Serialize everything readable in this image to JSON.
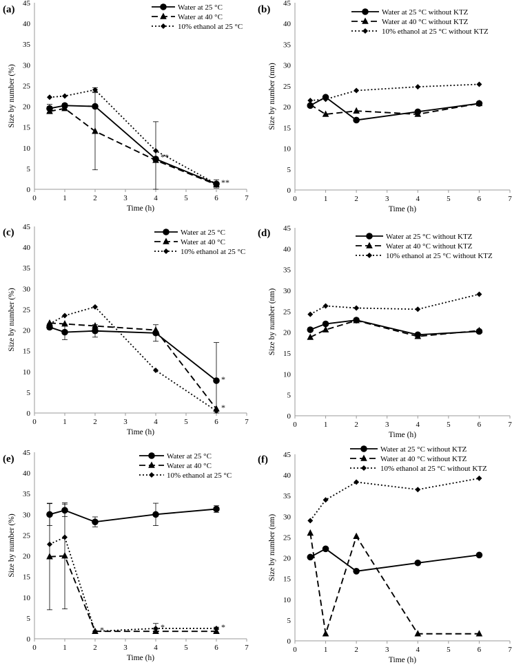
{
  "chart_data": [
    {
      "panel": "(a)",
      "type": "line",
      "xlabel": "Time (h)",
      "ylabel": "Size by number (%)",
      "xlim": [
        0,
        7
      ],
      "ylim": [
        0,
        45
      ],
      "xticks": [
        "0",
        "1",
        "2",
        "3",
        "4",
        "5",
        "6",
        "7"
      ],
      "yticks": [
        "0",
        "5",
        "10",
        "15",
        "20",
        "25",
        "30",
        "35",
        "40",
        "45"
      ],
      "legend_position": "top-right",
      "x": [
        0.5,
        1,
        2,
        4,
        6
      ],
      "series": [
        {
          "name": "Water at 25 °C",
          "style": "solid",
          "marker": "circle",
          "values": [
            19.5,
            20.2,
            20.0,
            7.3,
            1.3
          ],
          "errors": [
            1.0,
            0.5,
            0,
            9.0,
            1.0
          ]
        },
        {
          "name": "Water at 40 °C",
          "style": "dashed",
          "marker": "triangle",
          "values": [
            18.8,
            19.5,
            14.0,
            7.0,
            1.1
          ],
          "errors": [
            0,
            0,
            9.3,
            0,
            0
          ]
        },
        {
          "name": "10% ethanol at 25 °C",
          "style": "dotted",
          "marker": "diamond",
          "values": [
            22.2,
            22.5,
            24.0,
            9.3,
            1.3
          ],
          "errors": [
            0,
            0,
            0.5,
            0,
            0
          ]
        }
      ],
      "annotations": [
        {
          "x": 4,
          "y": 7.5,
          "text": "**"
        },
        {
          "x": 6,
          "y": 1.3,
          "text": "**"
        }
      ]
    },
    {
      "panel": "(b)",
      "type": "line",
      "xlabel": "Time (h)",
      "ylabel": "Size by number (nm)",
      "xlim": [
        0,
        7
      ],
      "ylim": [
        0,
        45
      ],
      "xticks": [
        "0",
        "1",
        "2",
        "3",
        "4",
        "5",
        "6",
        "7"
      ],
      "yticks": [
        "0",
        "5",
        "10",
        "15",
        "20",
        "25",
        "30",
        "35",
        "40",
        "45"
      ],
      "legend_position": "top-right",
      "x": [
        0.5,
        1,
        2,
        4,
        6
      ],
      "series": [
        {
          "name": "Water at 25 °C without KTZ",
          "style": "solid",
          "marker": "circle",
          "values": [
            20.3,
            22.3,
            16.8,
            18.8,
            20.8
          ]
        },
        {
          "name": "Water at 40 °C without KTZ",
          "style": "dashed",
          "marker": "triangle",
          "values": [
            20.5,
            18.2,
            19.0,
            18.2,
            20.8
          ]
        },
        {
          "name": "10% ethanol at 25 °C without KTZ",
          "style": "dotted",
          "marker": "diamond",
          "values": [
            21.5,
            21.8,
            23.9,
            24.8,
            25.4
          ]
        }
      ],
      "annotations": []
    },
    {
      "panel": "(c)",
      "type": "line",
      "xlabel": "Time (h)",
      "ylabel": "Size by number (%)",
      "xlim": [
        0,
        7
      ],
      "ylim": [
        0,
        45
      ],
      "xticks": [
        "0",
        "1",
        "2",
        "3",
        "4",
        "5",
        "6",
        "7"
      ],
      "yticks": [
        "0",
        "5",
        "10",
        "15",
        "20",
        "25",
        "30",
        "35",
        "40",
        "45"
      ],
      "legend_position": "top-right",
      "x": [
        0.5,
        1,
        2,
        4,
        6
      ],
      "series": [
        {
          "name": "Water at 25 °C",
          "style": "solid",
          "marker": "circle",
          "values": [
            20.7,
            19.5,
            19.8,
            19.3,
            7.8
          ],
          "errors": [
            0.5,
            1.8,
            1.5,
            2.0,
            9.2
          ]
        },
        {
          "name": "Water at 40 °C",
          "style": "dashed",
          "marker": "triangle",
          "values": [
            21.7,
            21.5,
            21.0,
            20.0,
            1.0
          ],
          "errors": [
            0,
            0,
            0,
            0,
            0
          ]
        },
        {
          "name": "10% ethanol at 25 °C",
          "style": "dotted",
          "marker": "diamond",
          "values": [
            21.5,
            23.5,
            25.6,
            10.3,
            0.5
          ],
          "errors": [
            0,
            0,
            0,
            0,
            0
          ]
        }
      ],
      "annotations": [
        {
          "x": 6,
          "y": 7.8,
          "text": "*"
        },
        {
          "x": 6,
          "y": 1.0,
          "text": "*"
        }
      ]
    },
    {
      "panel": "(d)",
      "type": "line",
      "xlabel": "Time (h)",
      "ylabel": "Size by number (nm)",
      "xlim": [
        0,
        7
      ],
      "ylim": [
        0,
        45
      ],
      "xticks": [
        "0",
        "1",
        "2",
        "3",
        "4",
        "5",
        "6",
        "7"
      ],
      "yticks": [
        "0",
        "5",
        "10",
        "15",
        "20",
        "25",
        "30",
        "35",
        "40",
        "45"
      ],
      "legend_position": "top-right",
      "x": [
        0.5,
        1,
        2,
        4,
        6
      ],
      "series": [
        {
          "name": "Water at 25 °C without KTZ",
          "style": "solid",
          "marker": "circle",
          "values": [
            20.6,
            22.0,
            22.9,
            19.4,
            20.2
          ]
        },
        {
          "name": "Water at 40 °C without KTZ",
          "style": "dashed",
          "marker": "triangle",
          "values": [
            18.8,
            20.6,
            22.8,
            19.0,
            20.4
          ]
        },
        {
          "name": "10% ethanol at 25 °C without KTZ",
          "style": "dotted",
          "marker": "diamond",
          "values": [
            24.3,
            26.3,
            25.8,
            25.5,
            29.1
          ]
        }
      ],
      "annotations": []
    },
    {
      "panel": "(e)",
      "type": "line",
      "xlabel": "Time (h)",
      "ylabel": "Size by number (%)",
      "xlim": [
        0,
        7
      ],
      "ylim": [
        0,
        45
      ],
      "xticks": [
        "0",
        "1",
        "2",
        "3",
        "4",
        "5",
        "6",
        "7"
      ],
      "yticks": [
        "0",
        "5",
        "10",
        "15",
        "20",
        "25",
        "30",
        "35",
        "40",
        "45"
      ],
      "legend_position": "top-right",
      "x": [
        0.5,
        1,
        2,
        4,
        6
      ],
      "series": [
        {
          "name": "Water at 25 °C",
          "style": "solid",
          "marker": "circle",
          "values": [
            30.0,
            31.0,
            28.2,
            30.0,
            31.3
          ],
          "errors": [
            2.7,
            1.5,
            1.2,
            2.7,
            0.8
          ]
        },
        {
          "name": "Water at 40 °C",
          "style": "dashed",
          "marker": "triangle",
          "values": [
            19.8,
            20.0,
            1.8,
            1.8,
            1.8
          ],
          "errors": [
            12.8,
            12.8,
            0,
            0.5,
            0
          ]
        },
        {
          "name": "10% ethanol at 25 °C",
          "style": "dotted",
          "marker": "diamond",
          "values": [
            22.8,
            24.5,
            1.8,
            2.5,
            2.5
          ],
          "errors": [
            0,
            0,
            0,
            1.2,
            0.3
          ]
        }
      ],
      "annotations": [
        {
          "x": 2,
          "y": 1.8,
          "text": "*"
        },
        {
          "x": 4,
          "y": 2.5,
          "text": "*"
        },
        {
          "x": 6,
          "y": 2.5,
          "text": "*"
        }
      ]
    },
    {
      "panel": "(f)",
      "type": "line",
      "xlabel": "Time (h)",
      "ylabel": "Size by number (nm)",
      "xlim": [
        0,
        7
      ],
      "ylim": [
        0,
        45
      ],
      "xticks": [
        "0",
        "1",
        "2",
        "3",
        "4",
        "5",
        "6",
        "7"
      ],
      "yticks": [
        "0",
        "5",
        "10",
        "15",
        "20",
        "25",
        "30",
        "35",
        "40",
        "45"
      ],
      "legend_position": "top-right",
      "x": [
        0.5,
        1,
        2,
        4,
        6
      ],
      "series": [
        {
          "name": "Water at 25 °C without KTZ",
          "style": "solid",
          "marker": "circle",
          "values": [
            20.2,
            22.2,
            16.8,
            18.8,
            20.7
          ]
        },
        {
          "name": "Water at 40 °C without KTZ",
          "style": "dashed",
          "marker": "triangle",
          "values": [
            26.0,
            1.7,
            25.2,
            1.7,
            1.7
          ]
        },
        {
          "name": "10% ethanol at 25 °C without KTZ",
          "style": "dotted",
          "marker": "diamond",
          "values": [
            29.0,
            34.0,
            38.3,
            36.5,
            39.2
          ]
        }
      ],
      "annotations": []
    }
  ]
}
